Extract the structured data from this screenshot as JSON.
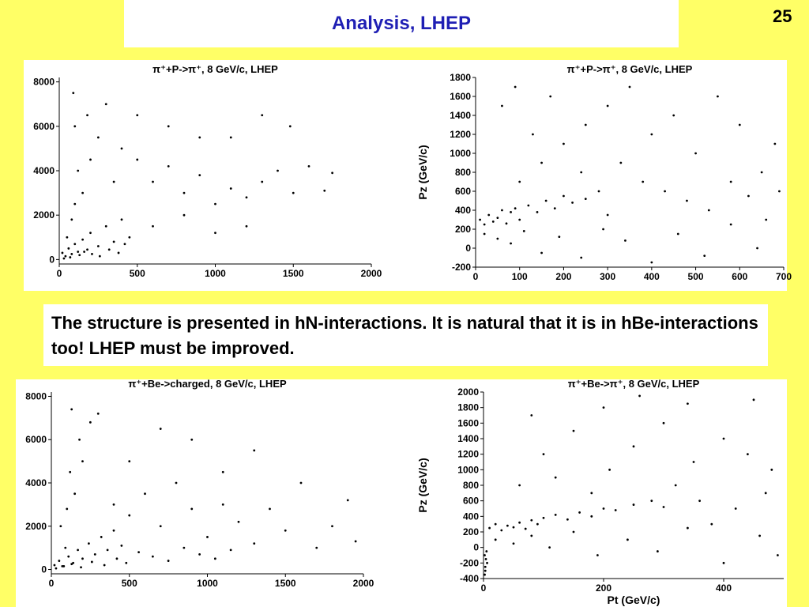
{
  "slide": {
    "title": "Analysis, LHEP",
    "page_number": "25",
    "note": "The structure is presented in hN-interactions. It is natural that it is in hBe-interactions too! LHEP must be improved.",
    "background_color": "#ffff66",
    "title_color": "#1f1fb4"
  },
  "chart_data": [
    {
      "id": "c1",
      "type": "scatter",
      "title": "π⁺+P->π⁺, 8 GeV/c, LHEP",
      "xlabel": "",
      "ylabel": "",
      "xlim": [
        0,
        2000
      ],
      "ylim": [
        -200,
        8200
      ],
      "xticks": [
        0,
        500,
        1000,
        1500,
        2000
      ],
      "yticks": [
        0,
        2000,
        4000,
        6000,
        8000
      ],
      "series": [
        {
          "points": [
            [
              20,
              300
            ],
            [
              40,
              150
            ],
            [
              60,
              500
            ],
            [
              80,
              250
            ],
            [
              100,
              700
            ],
            [
              120,
              350
            ],
            [
              150,
              900
            ],
            [
              180,
              450
            ],
            [
              200,
              1200
            ],
            [
              250,
              600
            ],
            [
              300,
              1500
            ],
            [
              350,
              800
            ],
            [
              400,
              1800
            ],
            [
              450,
              1000
            ],
            [
              50,
              1000
            ],
            [
              80,
              1800
            ],
            [
              100,
              2500
            ],
            [
              150,
              3000
            ],
            [
              120,
              4000
            ],
            [
              200,
              4500
            ],
            [
              250,
              5500
            ],
            [
              100,
              6000
            ],
            [
              180,
              6500
            ],
            [
              300,
              7000
            ],
            [
              90,
              7500
            ],
            [
              350,
              3500
            ],
            [
              400,
              5000
            ],
            [
              500,
              4500
            ],
            [
              600,
              3500
            ],
            [
              700,
              4200
            ],
            [
              800,
              3000
            ],
            [
              900,
              3800
            ],
            [
              1000,
              2500
            ],
            [
              1100,
              3200
            ],
            [
              1200,
              2800
            ],
            [
              1300,
              3500
            ],
            [
              1400,
              4000
            ],
            [
              1500,
              3000
            ],
            [
              1600,
              4200
            ],
            [
              1700,
              3100
            ],
            [
              1750,
              3900
            ],
            [
              500,
              6500
            ],
            [
              700,
              6000
            ],
            [
              900,
              5500
            ],
            [
              1100,
              5500
            ],
            [
              1300,
              6500
            ],
            [
              1480,
              6000
            ],
            [
              600,
              1500
            ],
            [
              800,
              2000
            ],
            [
              1000,
              1200
            ],
            [
              1200,
              1500
            ],
            [
              30,
              50
            ],
            [
              70,
              100
            ],
            [
              130,
              200
            ],
            [
              160,
              350
            ],
            [
              210,
              250
            ],
            [
              260,
              150
            ],
            [
              320,
              450
            ],
            [
              380,
              300
            ],
            [
              420,
              700
            ]
          ]
        }
      ]
    },
    {
      "id": "c2",
      "type": "scatter",
      "title": "π⁺+P->π⁺, 8 GeV/c, LHEP",
      "xlabel": "",
      "ylabel": "Pz (GeV/c)",
      "xlim": [
        0,
        700
      ],
      "ylim": [
        -200,
        1800
      ],
      "xticks": [
        0,
        100,
        200,
        300,
        400,
        500,
        600,
        700
      ],
      "yticks": [
        -200,
        0,
        200,
        400,
        600,
        800,
        1000,
        1200,
        1400,
        1600,
        1800
      ],
      "series": [
        {
          "points": [
            [
              10,
              300
            ],
            [
              20,
              250
            ],
            [
              30,
              350
            ],
            [
              40,
              280
            ],
            [
              50,
              320
            ],
            [
              60,
              400
            ],
            [
              70,
              260
            ],
            [
              80,
              380
            ],
            [
              90,
              420
            ],
            [
              100,
              300
            ],
            [
              120,
              450
            ],
            [
              140,
              380
            ],
            [
              160,
              500
            ],
            [
              180,
              420
            ],
            [
              200,
              550
            ],
            [
              220,
              480
            ],
            [
              250,
              520
            ],
            [
              280,
              600
            ],
            [
              20,
              150
            ],
            [
              50,
              100
            ],
            [
              80,
              50
            ],
            [
              110,
              180
            ],
            [
              150,
              -50
            ],
            [
              190,
              120
            ],
            [
              240,
              -100
            ],
            [
              290,
              200
            ],
            [
              340,
              80
            ],
            [
              400,
              -150
            ],
            [
              460,
              150
            ],
            [
              520,
              -80
            ],
            [
              580,
              250
            ],
            [
              640,
              0
            ],
            [
              100,
              700
            ],
            [
              150,
              900
            ],
            [
              200,
              1100
            ],
            [
              250,
              1300
            ],
            [
              300,
              1500
            ],
            [
              350,
              1700
            ],
            [
              400,
              1200
            ],
            [
              450,
              1400
            ],
            [
              500,
              1000
            ],
            [
              550,
              1600
            ],
            [
              600,
              1300
            ],
            [
              650,
              800
            ],
            [
              680,
              1100
            ],
            [
              60,
              1500
            ],
            [
              90,
              1700
            ],
            [
              130,
              1200
            ],
            [
              170,
              1600
            ],
            [
              330,
              900
            ],
            [
              380,
              700
            ],
            [
              430,
              600
            ],
            [
              480,
              500
            ],
            [
              530,
              400
            ],
            [
              580,
              700
            ],
            [
              620,
              550
            ],
            [
              660,
              300
            ],
            [
              690,
              600
            ],
            [
              240,
              800
            ],
            [
              300,
              350
            ]
          ]
        }
      ]
    },
    {
      "id": "c3",
      "type": "scatter",
      "title": "π⁺+Be->charged, 8 GeV/c, LHEP",
      "xlabel": "",
      "ylabel": "",
      "xlim": [
        0,
        2000
      ],
      "ylim": [
        -200,
        8200
      ],
      "xticks": [
        0,
        500,
        1000,
        1500,
        2000
      ],
      "yticks": [
        0,
        2000,
        4000,
        6000,
        8000
      ],
      "series": [
        {
          "points": [
            [
              20,
              200
            ],
            [
              50,
              400
            ],
            [
              80,
              150
            ],
            [
              110,
              600
            ],
            [
              140,
              300
            ],
            [
              170,
              900
            ],
            [
              200,
              500
            ],
            [
              240,
              1200
            ],
            [
              280,
              700
            ],
            [
              320,
              1500
            ],
            [
              360,
              900
            ],
            [
              400,
              1800
            ],
            [
              450,
              1100
            ],
            [
              60,
              2000
            ],
            [
              100,
              2800
            ],
            [
              150,
              3500
            ],
            [
              120,
              4500
            ],
            [
              200,
              5000
            ],
            [
              180,
              6000
            ],
            [
              250,
              6800
            ],
            [
              300,
              7200
            ],
            [
              130,
              7400
            ],
            [
              400,
              3000
            ],
            [
              500,
              2500
            ],
            [
              600,
              3500
            ],
            [
              700,
              2000
            ],
            [
              800,
              4000
            ],
            [
              900,
              2800
            ],
            [
              1000,
              1500
            ],
            [
              1100,
              3000
            ],
            [
              1200,
              2200
            ],
            [
              1300,
              1200
            ],
            [
              1400,
              2800
            ],
            [
              1500,
              1800
            ],
            [
              1600,
              4000
            ],
            [
              1700,
              1000
            ],
            [
              1800,
              2000
            ],
            [
              1900,
              3200
            ],
            [
              1950,
              1300
            ],
            [
              500,
              5000
            ],
            [
              700,
              6500
            ],
            [
              900,
              6000
            ],
            [
              1100,
              4500
            ],
            [
              1300,
              5500
            ],
            [
              30,
              50
            ],
            [
              70,
              150
            ],
            [
              130,
              250
            ],
            [
              190,
              100
            ],
            [
              260,
              350
            ],
            [
              340,
              200
            ],
            [
              420,
              500
            ],
            [
              480,
              300
            ],
            [
              560,
              800
            ],
            [
              650,
              600
            ],
            [
              750,
              400
            ],
            [
              850,
              1000
            ],
            [
              950,
              700
            ],
            [
              1050,
              500
            ],
            [
              1150,
              900
            ],
            [
              90,
              1000
            ]
          ]
        }
      ]
    },
    {
      "id": "c4",
      "type": "scatter",
      "title": "π⁺+Be->π⁺, 8 GeV/c, LHEP",
      "xlabel": "Pt (GeV/c)",
      "ylabel": "Pz (GeV/c)",
      "xlim": [
        0,
        500
      ],
      "ylim": [
        -400,
        2000
      ],
      "xticks": [
        0,
        200,
        400
      ],
      "yticks": [
        -400,
        -200,
        0,
        200,
        400,
        600,
        800,
        1000,
        1200,
        1400,
        1600,
        1800,
        2000
      ],
      "series": [
        {
          "points": [
            [
              2,
              -350
            ],
            [
              3,
              -250
            ],
            [
              4,
              -150
            ],
            [
              5,
              -50
            ],
            [
              3,
              -300
            ],
            [
              2,
              -100
            ],
            [
              6,
              -200
            ],
            [
              10,
              250
            ],
            [
              20,
              300
            ],
            [
              30,
              220
            ],
            [
              40,
              280
            ],
            [
              50,
              260
            ],
            [
              60,
              320
            ],
            [
              70,
              240
            ],
            [
              80,
              350
            ],
            [
              90,
              300
            ],
            [
              100,
              380
            ],
            [
              120,
              420
            ],
            [
              140,
              360
            ],
            [
              160,
              450
            ],
            [
              180,
              400
            ],
            [
              200,
              500
            ],
            [
              220,
              480
            ],
            [
              250,
              550
            ],
            [
              280,
              600
            ],
            [
              300,
              520
            ],
            [
              20,
              100
            ],
            [
              50,
              50
            ],
            [
              80,
              150
            ],
            [
              110,
              0
            ],
            [
              150,
              200
            ],
            [
              190,
              -100
            ],
            [
              240,
              100
            ],
            [
              290,
              -50
            ],
            [
              340,
              250
            ],
            [
              400,
              -200
            ],
            [
              460,
              150
            ],
            [
              490,
              -100
            ],
            [
              60,
              800
            ],
            [
              100,
              1200
            ],
            [
              150,
              1500
            ],
            [
              200,
              1800
            ],
            [
              250,
              1300
            ],
            [
              300,
              1600
            ],
            [
              350,
              1100
            ],
            [
              400,
              1400
            ],
            [
              450,
              1900
            ],
            [
              480,
              1000
            ],
            [
              120,
              900
            ],
            [
              180,
              700
            ],
            [
              320,
              800
            ],
            [
              360,
              600
            ],
            [
              420,
              500
            ],
            [
              470,
              700
            ],
            [
              80,
              1700
            ],
            [
              260,
              1950
            ],
            [
              340,
              1850
            ],
            [
              440,
              1200
            ],
            [
              210,
              1000
            ],
            [
              380,
              300
            ]
          ]
        }
      ]
    }
  ]
}
